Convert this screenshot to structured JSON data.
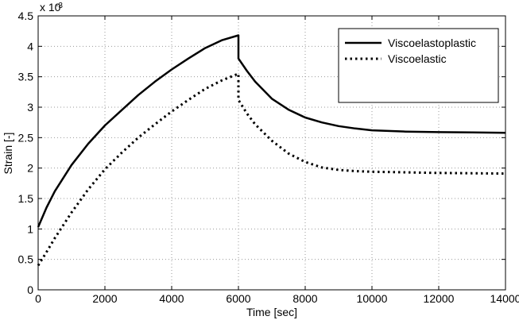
{
  "chart_data": {
    "type": "line",
    "title": "",
    "xlabel": "Time [sec]",
    "ylabel": "Strain [-]",
    "y_multiplier_base": "x 10",
    "y_multiplier_exponent": "-3",
    "xlim": [
      0,
      14000
    ],
    "ylim": [
      0,
      4.5
    ],
    "xticks": [
      0,
      2000,
      4000,
      6000,
      8000,
      10000,
      12000,
      14000
    ],
    "xtick_labels": [
      "0",
      "2000",
      "4000",
      "6000",
      "8000",
      "10000",
      "12000",
      "14000"
    ],
    "yticks": [
      0,
      0.5,
      1,
      1.5,
      2,
      2.5,
      3,
      3.5,
      4,
      4.5
    ],
    "ytick_labels": [
      "0",
      "0.5",
      "1",
      "1.5",
      "2",
      "2.5",
      "3",
      "3.5",
      "4",
      "4.5"
    ],
    "grid": true,
    "legend_position": "top-right",
    "series": [
      {
        "name": "Viscoelastoplastic",
        "style": "solid",
        "color": "#000000",
        "x": [
          0,
          250,
          500,
          1000,
          1500,
          2000,
          2500,
          3000,
          3500,
          4000,
          4500,
          5000,
          5500,
          6000,
          6000,
          6250,
          6500,
          7000,
          7500,
          8000,
          8500,
          9000,
          9500,
          10000,
          11000,
          12000,
          13000,
          14000
        ],
        "y": [
          1.03,
          1.35,
          1.62,
          2.05,
          2.4,
          2.7,
          2.95,
          3.2,
          3.42,
          3.62,
          3.8,
          3.97,
          4.1,
          4.18,
          3.8,
          3.6,
          3.42,
          3.14,
          2.96,
          2.83,
          2.75,
          2.69,
          2.65,
          2.62,
          2.6,
          2.59,
          2.585,
          2.58
        ]
      },
      {
        "name": "Viscoelastic",
        "style": "dotted",
        "color": "#000000",
        "x": [
          0,
          250,
          500,
          1000,
          1500,
          2000,
          2500,
          3000,
          3500,
          4000,
          4500,
          5000,
          5500,
          6000,
          6000,
          6250,
          6500,
          7000,
          7500,
          8000,
          8500,
          9000,
          9500,
          10000,
          11000,
          12000,
          13000,
          14000
        ],
        "y": [
          0.4,
          0.62,
          0.85,
          1.27,
          1.65,
          1.98,
          2.25,
          2.5,
          2.72,
          2.93,
          3.12,
          3.3,
          3.44,
          3.55,
          3.12,
          2.9,
          2.72,
          2.45,
          2.24,
          2.1,
          2.01,
          1.97,
          1.95,
          1.94,
          1.93,
          1.92,
          1.915,
          1.91
        ]
      }
    ]
  }
}
